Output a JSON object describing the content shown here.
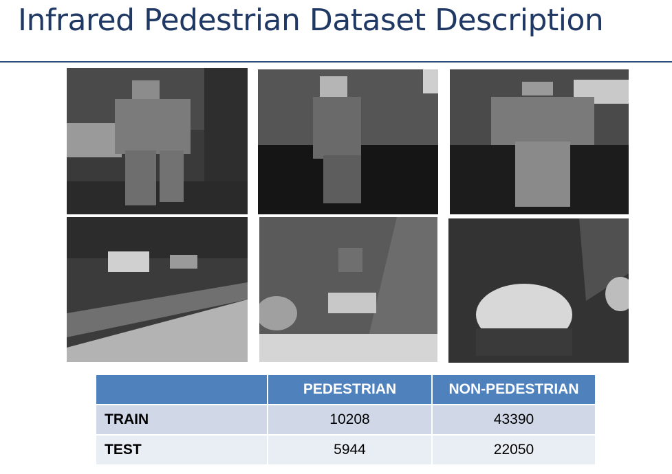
{
  "slide": {
    "title": "Infrared Pedestrian Dataset Description"
  },
  "images": [
    {
      "name": "pedestrian-sample-1"
    },
    {
      "name": "pedestrian-sample-2"
    },
    {
      "name": "pedestrian-sample-3"
    },
    {
      "name": "non-pedestrian-sample-1"
    },
    {
      "name": "non-pedestrian-sample-2"
    },
    {
      "name": "non-pedestrian-sample-3"
    }
  ],
  "table": {
    "corner": "",
    "headers": [
      "PEDESTRIAN",
      "NON-PEDESTRIAN"
    ],
    "rows": [
      {
        "label": "TRAIN",
        "values": [
          "10208",
          "43390"
        ]
      },
      {
        "label": "TEST",
        "values": [
          "5944",
          "22050"
        ]
      }
    ]
  }
}
